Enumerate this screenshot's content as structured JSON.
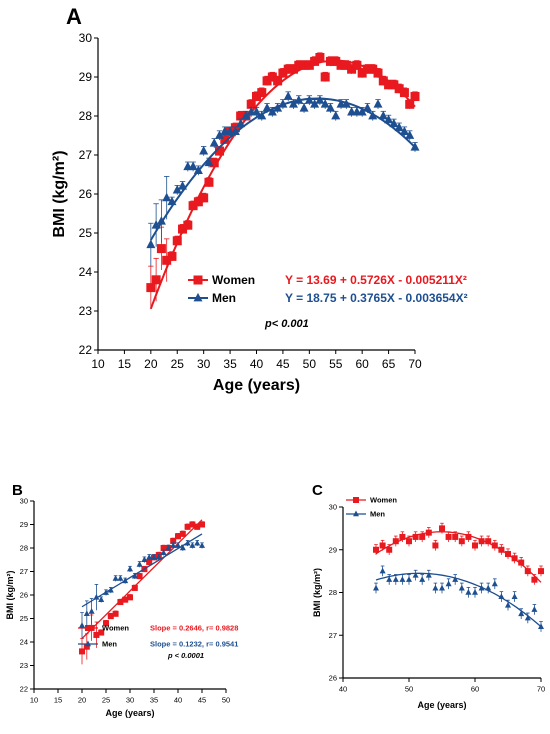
{
  "colors": {
    "women": "#e8191f",
    "men": "#1d4f91",
    "axis": "#000000"
  },
  "chart_data": [
    {
      "panel_label": "A",
      "type": "scatter",
      "xlabel": "Age (years)",
      "ylabel": "BMI (kg/m²)",
      "xlim": [
        10,
        70
      ],
      "ylim": [
        22,
        30
      ],
      "xticks": [
        10,
        15,
        20,
        25,
        30,
        35,
        40,
        45,
        50,
        55,
        60,
        65,
        70
      ],
      "yticks": [
        22,
        23,
        24,
        25,
        26,
        27,
        28,
        29,
        30
      ],
      "legend": "center-left",
      "annotation": "p< 0.001",
      "series": [
        {
          "name": "Women",
          "marker": "square",
          "color": "#e8191f",
          "fit": {
            "type": "quadratic",
            "a": 13.69,
            "b": 0.5726,
            "c": -0.005211,
            "label": "Y = 13.69 + 0.5726X - 0.005211X²"
          },
          "x": [
            20,
            21,
            22,
            23,
            24,
            25,
            26,
            27,
            28,
            29,
            30,
            31,
            32,
            33,
            34,
            35,
            36,
            37,
            38,
            39,
            40,
            41,
            42,
            43,
            44,
            45,
            46,
            47,
            48,
            49,
            50,
            51,
            52,
            53,
            54,
            55,
            56,
            57,
            58,
            59,
            60,
            61,
            62,
            63,
            64,
            65,
            66,
            67,
            68,
            69,
            70
          ],
          "y": [
            23.6,
            23.8,
            24.6,
            24.3,
            24.4,
            24.8,
            25.1,
            25.2,
            25.7,
            25.8,
            25.9,
            26.3,
            26.8,
            27.1,
            27.4,
            27.6,
            27.7,
            28.0,
            28.0,
            28.3,
            28.5,
            28.6,
            28.9,
            29.0,
            28.9,
            29.1,
            29.2,
            29.2,
            29.3,
            29.3,
            29.3,
            29.4,
            29.5,
            29.0,
            29.4,
            29.4,
            29.3,
            29.3,
            29.2,
            29.3,
            29.1,
            29.2,
            29.2,
            29.1,
            28.9,
            28.8,
            28.8,
            28.7,
            28.6,
            28.3,
            28.5
          ]
        },
        {
          "name": "Men",
          "marker": "triangle",
          "color": "#1d4f91",
          "fit": {
            "type": "quadratic",
            "a": 18.75,
            "b": 0.3765,
            "c": -0.003654,
            "label": "Y = 18.75 + 0.3765X - 0.003654X²"
          },
          "x": [
            20,
            21,
            22,
            23,
            24,
            25,
            26,
            27,
            28,
            29,
            30,
            31,
            32,
            33,
            34,
            35,
            36,
            37,
            38,
            39,
            40,
            41,
            42,
            43,
            44,
            45,
            46,
            47,
            48,
            49,
            50,
            51,
            52,
            53,
            54,
            55,
            56,
            57,
            58,
            59,
            60,
            61,
            62,
            63,
            64,
            65,
            66,
            67,
            68,
            69,
            70
          ],
          "y": [
            24.7,
            25.2,
            25.3,
            25.9,
            25.8,
            26.1,
            26.2,
            26.7,
            26.7,
            26.6,
            27.1,
            26.8,
            27.3,
            27.5,
            27.6,
            27.6,
            27.6,
            27.8,
            28.0,
            28.1,
            28.1,
            28.0,
            28.2,
            28.1,
            28.2,
            28.3,
            28.5,
            28.3,
            28.4,
            28.2,
            28.4,
            28.3,
            28.4,
            28.3,
            28.2,
            28.0,
            28.3,
            28.3,
            28.1,
            28.1,
            28.1,
            28.2,
            28.0,
            28.3,
            28.0,
            27.9,
            27.8,
            27.7,
            27.6,
            27.5,
            27.2
          ]
        }
      ]
    },
    {
      "panel_label": "B",
      "type": "scatter",
      "xlabel": "Age (years)",
      "ylabel": "BMI (kg/m²)",
      "xlim": [
        10,
        50
      ],
      "ylim": [
        22,
        30
      ],
      "xticks": [
        10,
        15,
        20,
        25,
        30,
        35,
        40,
        45,
        50
      ],
      "yticks": [
        22,
        23,
        24,
        25,
        26,
        27,
        28,
        29,
        30
      ],
      "legend": "bottom-center",
      "annotation": "p < 0.0001",
      "series": [
        {
          "name": "Women",
          "marker": "square",
          "color": "#e8191f",
          "fit": {
            "type": "linear",
            "label": "Slope = 0.2646,  r= 0.9828",
            "p0": [
              20,
              24.15
            ],
            "p1": [
              45,
              29.2
            ]
          },
          "x": [
            20,
            21,
            22,
            23,
            24,
            25,
            26,
            27,
            28,
            29,
            30,
            31,
            32,
            33,
            34,
            35,
            36,
            37,
            38,
            39,
            40,
            41,
            42,
            43,
            44,
            45
          ],
          "y": [
            23.6,
            23.8,
            24.6,
            24.3,
            24.4,
            24.8,
            25.1,
            25.2,
            25.7,
            25.8,
            25.9,
            26.3,
            26.8,
            27.1,
            27.4,
            27.6,
            27.7,
            28.0,
            28.0,
            28.3,
            28.5,
            28.6,
            28.9,
            29.0,
            28.9,
            29.0
          ]
        },
        {
          "name": "Men",
          "marker": "triangle",
          "color": "#1d4f91",
          "fit": {
            "type": "linear",
            "label": "Slope = 0.1232,  r= 0.9541",
            "p0": [
              20,
              25.5
            ],
            "p1": [
              45,
              28.6
            ]
          },
          "x": [
            20,
            21,
            22,
            23,
            24,
            25,
            26,
            27,
            28,
            29,
            30,
            31,
            32,
            33,
            34,
            35,
            36,
            37,
            38,
            39,
            40,
            41,
            42,
            43,
            44,
            45
          ],
          "y": [
            24.7,
            25.2,
            25.3,
            25.9,
            25.8,
            26.1,
            26.2,
            26.7,
            26.7,
            26.6,
            27.1,
            26.8,
            27.3,
            27.5,
            27.6,
            27.6,
            27.6,
            27.8,
            28.0,
            28.1,
            28.1,
            28.0,
            28.2,
            28.1,
            28.2,
            28.1
          ]
        }
      ]
    },
    {
      "panel_label": "C",
      "type": "scatter",
      "xlabel": "Age (years)",
      "ylabel": "BMI (kg/m²)",
      "xlim": [
        40,
        70
      ],
      "ylim": [
        26,
        30
      ],
      "xticks": [
        40,
        50,
        60,
        70
      ],
      "yticks": [
        26,
        27,
        28,
        29,
        30
      ],
      "legend": "top-left",
      "annotation": "",
      "series": [
        {
          "name": "Women",
          "marker": "square",
          "color": "#e8191f",
          "fit": {
            "type": "quadratic",
            "a": 13.69,
            "b": 0.5726,
            "c": -0.005211,
            "label": ""
          },
          "x": [
            45,
            46,
            47,
            48,
            49,
            50,
            51,
            52,
            53,
            54,
            55,
            56,
            57,
            58,
            59,
            60,
            61,
            62,
            63,
            64,
            65,
            66,
            67,
            68,
            69,
            70
          ],
          "y": [
            29.0,
            29.1,
            29.0,
            29.2,
            29.3,
            29.2,
            29.3,
            29.3,
            29.4,
            29.1,
            29.5,
            29.3,
            29.3,
            29.2,
            29.3,
            29.1,
            29.2,
            29.2,
            29.1,
            29.0,
            28.9,
            28.8,
            28.7,
            28.5,
            28.3,
            28.5
          ]
        },
        {
          "name": "Men",
          "marker": "triangle",
          "color": "#1d4f91",
          "fit": {
            "type": "quadratic",
            "a": 18.75,
            "b": 0.3765,
            "c": -0.003654,
            "label": ""
          },
          "x": [
            45,
            46,
            47,
            48,
            49,
            50,
            51,
            52,
            53,
            54,
            55,
            56,
            57,
            58,
            59,
            60,
            61,
            62,
            63,
            64,
            65,
            66,
            67,
            68,
            69,
            70
          ],
          "y": [
            28.1,
            28.5,
            28.3,
            28.3,
            28.3,
            28.3,
            28.4,
            28.3,
            28.4,
            28.1,
            28.1,
            28.2,
            28.3,
            28.1,
            28.0,
            28.0,
            28.1,
            28.1,
            28.2,
            27.9,
            27.7,
            27.9,
            27.5,
            27.4,
            27.6,
            27.2
          ]
        }
      ]
    }
  ]
}
